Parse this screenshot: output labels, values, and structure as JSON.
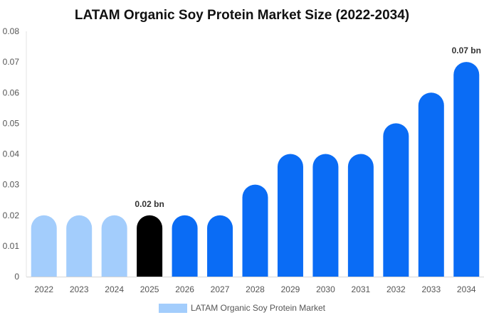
{
  "chart_data": {
    "type": "bar",
    "title": "LATAM Organic Soy Protein Market Size (2022-2034)",
    "categories": [
      "2022",
      "2023",
      "2024",
      "2025",
      "2026",
      "2027",
      "2028",
      "2029",
      "2030",
      "2031",
      "2032",
      "2033",
      "2034"
    ],
    "series": [
      {
        "name": "LATAM Organic Soy Protein Market",
        "values": [
          0.02,
          0.02,
          0.02,
          0.02,
          0.02,
          0.02,
          0.03,
          0.04,
          0.04,
          0.04,
          0.05,
          0.06,
          0.07
        ]
      }
    ],
    "ylim": [
      0,
      0.08
    ],
    "yticks": [
      "0",
      "0.01",
      "0.02",
      "0.03",
      "0.04",
      "0.05",
      "0.06",
      "0.07",
      "0.08"
    ],
    "data_labels": [
      {
        "category": "2025",
        "text": "0.02 bn"
      },
      {
        "category": "2034",
        "text": "0.07 bn"
      }
    ],
    "bar_colors": {
      "historical": "#a3cdfc",
      "current": "#000000",
      "forecast": "#0a6cf5"
    },
    "bar_color_by_category": [
      "historical",
      "historical",
      "historical",
      "current",
      "forecast",
      "forecast",
      "forecast",
      "forecast",
      "forecast",
      "forecast",
      "forecast",
      "forecast",
      "forecast"
    ],
    "legend": {
      "position": "bottom",
      "swatch_color": "#a3cdfc"
    },
    "grid": false
  }
}
